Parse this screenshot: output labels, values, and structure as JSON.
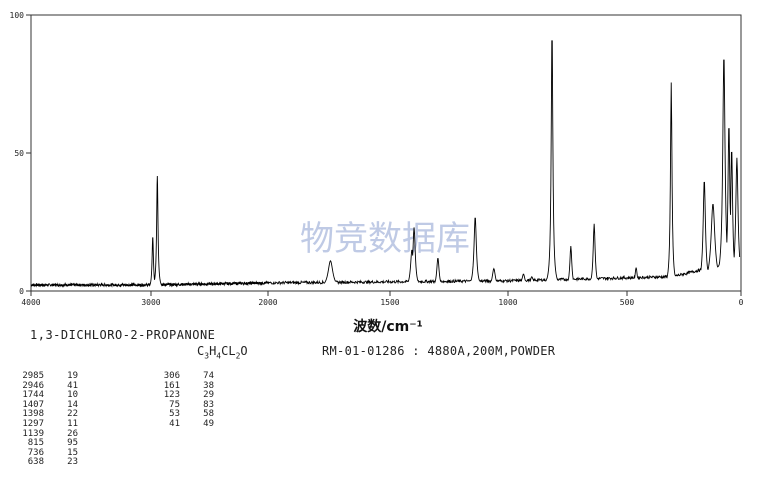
{
  "chart_data": {
    "type": "line",
    "xlabel": "波数/cm⁻¹",
    "xlim": [
      4000,
      0
    ],
    "ylim": [
      0,
      100
    ],
    "x_ticks": [
      "4000",
      "3000",
      "2000",
      "1500",
      "1000",
      "500",
      "0"
    ],
    "y_ticks": [
      "0",
      "50",
      "100"
    ],
    "watermark": "物竞数据库",
    "baseline_noise": 2.5,
    "peaks": [
      {
        "x": 2985,
        "y": 19,
        "w": 7
      },
      {
        "x": 2946,
        "y": 41,
        "w": 7
      },
      {
        "x": 1744,
        "y": 10,
        "w": 12
      },
      {
        "x": 1407,
        "y": 14,
        "w": 7
      },
      {
        "x": 1398,
        "y": 22,
        "w": 6
      },
      {
        "x": 1297,
        "y": 11,
        "w": 6
      },
      {
        "x": 1139,
        "y": 26,
        "w": 6
      },
      {
        "x": 1060,
        "y": 7,
        "w": 8
      },
      {
        "x": 935,
        "y": 5,
        "w": 8
      },
      {
        "x": 900,
        "y": 4,
        "w": 8
      },
      {
        "x": 815,
        "y": 95,
        "w": 4
      },
      {
        "x": 736,
        "y": 15,
        "w": 5
      },
      {
        "x": 638,
        "y": 23,
        "w": 5
      },
      {
        "x": 460,
        "y": 7,
        "w": 6
      },
      {
        "x": 306,
        "y": 74,
        "w": 4
      },
      {
        "x": 161,
        "y": 38,
        "w": 6
      },
      {
        "x": 123,
        "y": 29,
        "w": 10
      },
      {
        "x": 75,
        "y": 83,
        "w": 6
      },
      {
        "x": 53,
        "y": 58,
        "w": 5
      },
      {
        "x": 41,
        "y": 49,
        "w": 5
      },
      {
        "x": 18,
        "y": 45,
        "w": 6
      }
    ]
  },
  "sample": {
    "name": "1,3-DICHLORO-2-PROPANONE",
    "formula": {
      "c": "C",
      "c_n": "3",
      "h": "H",
      "h_n": "4",
      "cl": "CL",
      "cl_n": "2",
      "o": "O"
    },
    "catalog": "RM-01-01286 : 4880A,200M,POWDER"
  },
  "peak_table": {
    "left": [
      {
        "wn": "2985",
        "i": "19"
      },
      {
        "wn": "2946",
        "i": "41"
      },
      {
        "wn": "1744",
        "i": "10"
      },
      {
        "wn": "1407",
        "i": "14"
      },
      {
        "wn": "1398",
        "i": "22"
      },
      {
        "wn": "1297",
        "i": "11"
      },
      {
        "wn": "1139",
        "i": "26"
      },
      {
        "wn": "815",
        "i": "95"
      },
      {
        "wn": "736",
        "i": "15"
      },
      {
        "wn": "638",
        "i": "23"
      }
    ],
    "right": [
      {
        "wn": "306",
        "i": "74"
      },
      {
        "wn": "161",
        "i": "38"
      },
      {
        "wn": "123",
        "i": "29"
      },
      {
        "wn": "75",
        "i": "83"
      },
      {
        "wn": "53",
        "i": "58"
      },
      {
        "wn": "41",
        "i": "49"
      }
    ]
  }
}
